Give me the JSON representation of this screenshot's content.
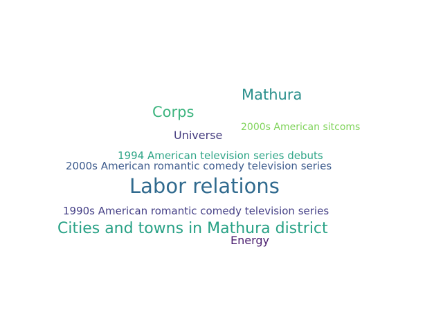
{
  "cloud": {
    "words": [
      {
        "text": "Mathura",
        "color": "#2a8f8b"
      },
      {
        "text": "Corps",
        "color": "#3cb47e"
      },
      {
        "text": "2000s American sitcoms",
        "color": "#7fd35a"
      },
      {
        "text": "Universe",
        "color": "#453c7f"
      },
      {
        "text": "1994 American television series debuts",
        "color": "#2fa587"
      },
      {
        "text": "2000s American romantic comedy television series",
        "color": "#3c5a8c"
      },
      {
        "text": "Labor relations",
        "color": "#306a8e"
      },
      {
        "text": "1990s American romantic comedy television series",
        "color": "#433e85"
      },
      {
        "text": "Cities and towns in Mathura district",
        "color": "#27a185"
      },
      {
        "text": "Energy",
        "color": "#481b6d"
      }
    ]
  }
}
